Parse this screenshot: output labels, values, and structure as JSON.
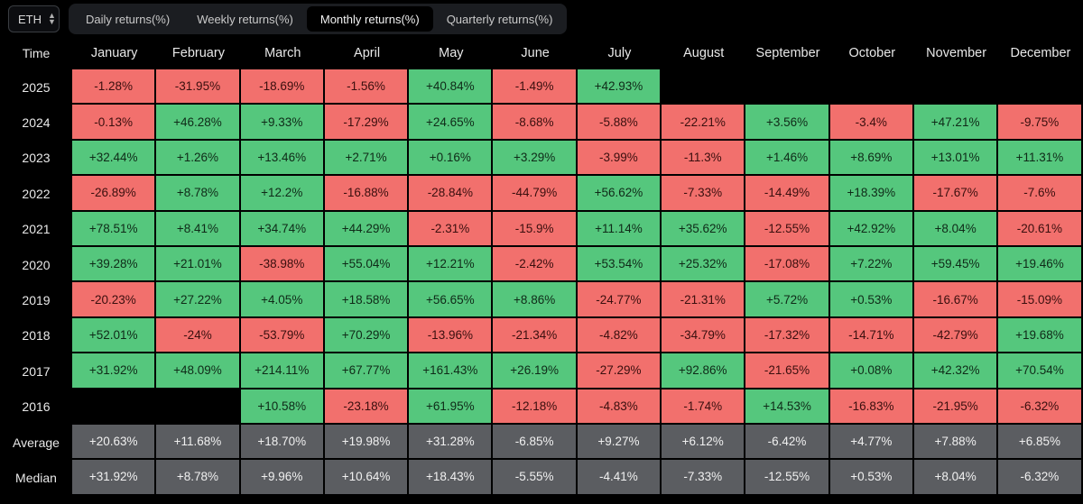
{
  "asset_select": {
    "value": "ETH",
    "icon": "chevron-updown-icon"
  },
  "tabs": [
    {
      "label": "Daily returns(%)",
      "active": false
    },
    {
      "label": "Weekly returns(%)",
      "active": false
    },
    {
      "label": "Monthly returns(%)",
      "active": true
    },
    {
      "label": "Quarterly returns(%)",
      "active": false
    }
  ],
  "table": {
    "corner_label": "Time",
    "months": [
      "January",
      "February",
      "March",
      "April",
      "May",
      "June",
      "July",
      "August",
      "September",
      "October",
      "November",
      "December"
    ],
    "rows": [
      {
        "label": "2025",
        "values": [
          "-1.28%",
          "-31.95%",
          "-18.69%",
          "-1.56%",
          "+40.84%",
          "-1.49%",
          "+42.93%",
          "",
          "",
          "",
          "",
          ""
        ]
      },
      {
        "label": "2024",
        "values": [
          "-0.13%",
          "+46.28%",
          "+9.33%",
          "-17.29%",
          "+24.65%",
          "-8.68%",
          "-5.88%",
          "-22.21%",
          "+3.56%",
          "-3.4%",
          "+47.21%",
          "-9.75%"
        ]
      },
      {
        "label": "2023",
        "values": [
          "+32.44%",
          "+1.26%",
          "+13.46%",
          "+2.71%",
          "+0.16%",
          "+3.29%",
          "-3.99%",
          "-11.3%",
          "+1.46%",
          "+8.69%",
          "+13.01%",
          "+11.31%"
        ]
      },
      {
        "label": "2022",
        "values": [
          "-26.89%",
          "+8.78%",
          "+12.2%",
          "-16.88%",
          "-28.84%",
          "-44.79%",
          "+56.62%",
          "-7.33%",
          "-14.49%",
          "+18.39%",
          "-17.67%",
          "-7.6%"
        ]
      },
      {
        "label": "2021",
        "values": [
          "+78.51%",
          "+8.41%",
          "+34.74%",
          "+44.29%",
          "-2.31%",
          "-15.9%",
          "+11.14%",
          "+35.62%",
          "-12.55%",
          "+42.92%",
          "+8.04%",
          "-20.61%"
        ]
      },
      {
        "label": "2020",
        "values": [
          "+39.28%",
          "+21.01%",
          "-38.98%",
          "+55.04%",
          "+12.21%",
          "-2.42%",
          "+53.54%",
          "+25.32%",
          "-17.08%",
          "+7.22%",
          "+59.45%",
          "+19.46%"
        ]
      },
      {
        "label": "2019",
        "values": [
          "-20.23%",
          "+27.22%",
          "+4.05%",
          "+18.58%",
          "+56.65%",
          "+8.86%",
          "-24.77%",
          "-21.31%",
          "+5.72%",
          "+0.53%",
          "-16.67%",
          "-15.09%"
        ]
      },
      {
        "label": "2018",
        "values": [
          "+52.01%",
          "-24%",
          "-53.79%",
          "+70.29%",
          "-13.96%",
          "-21.34%",
          "-4.82%",
          "-34.79%",
          "-17.32%",
          "-14.71%",
          "-42.79%",
          "+19.68%"
        ]
      },
      {
        "label": "2017",
        "values": [
          "+31.92%",
          "+48.09%",
          "+214.11%",
          "+67.77%",
          "+161.43%",
          "+26.19%",
          "-27.29%",
          "+92.86%",
          "-21.65%",
          "+0.08%",
          "+42.32%",
          "+70.54%"
        ]
      },
      {
        "label": "2016",
        "values": [
          "",
          "",
          "+10.58%",
          "-23.18%",
          "+61.95%",
          "-12.18%",
          "-4.83%",
          "-1.74%",
          "+14.53%",
          "-16.83%",
          "-21.95%",
          "-6.32%"
        ]
      }
    ],
    "stats": [
      {
        "label": "Average",
        "values": [
          "+20.63%",
          "+11.68%",
          "+18.70%",
          "+19.98%",
          "+31.28%",
          "-6.85%",
          "+9.27%",
          "+6.12%",
          "-6.42%",
          "+4.77%",
          "+7.88%",
          "+6.85%"
        ]
      },
      {
        "label": "Median",
        "values": [
          "+31.92%",
          "+8.78%",
          "+9.96%",
          "+10.64%",
          "+18.43%",
          "-5.55%",
          "-4.41%",
          "-7.33%",
          "-12.55%",
          "+0.53%",
          "+8.04%",
          "-6.32%"
        ]
      }
    ]
  },
  "colors": {
    "positive": "#55c77d",
    "negative": "#f2706d",
    "stat": "#5b5d61",
    "background": "#000000"
  }
}
